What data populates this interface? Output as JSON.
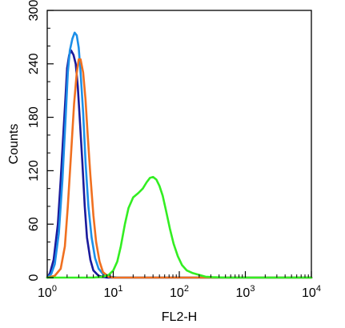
{
  "chart_data": {
    "type": "line",
    "xlabel": "FL2-H",
    "ylabel": "Counts",
    "x_scale": "log",
    "xlim": [
      1,
      10000
    ],
    "ylim": [
      0,
      300
    ],
    "x_ticks": [
      {
        "value": 1,
        "base": "10",
        "exp": "0"
      },
      {
        "value": 10,
        "base": "10",
        "exp": "1"
      },
      {
        "value": 100,
        "base": "10",
        "exp": "2"
      },
      {
        "value": 1000,
        "base": "10",
        "exp": "3"
      },
      {
        "value": 10000,
        "base": "10",
        "exp": "4"
      }
    ],
    "y_ticks": [
      "0",
      "60",
      "120",
      "180",
      "240",
      "300"
    ],
    "grid": false,
    "legend": "none",
    "series": [
      {
        "color": "#1a1a9c",
        "points": [
          [
            1.0,
            0
          ],
          [
            1.1,
            5
          ],
          [
            1.25,
            20
          ],
          [
            1.45,
            60
          ],
          [
            1.6,
            110
          ],
          [
            1.75,
            160
          ],
          [
            1.9,
            205
          ],
          [
            2.0,
            235
          ],
          [
            2.15,
            250
          ],
          [
            2.3,
            255
          ],
          [
            2.5,
            250
          ],
          [
            2.7,
            240
          ],
          [
            2.9,
            215
          ],
          [
            3.1,
            180
          ],
          [
            3.4,
            130
          ],
          [
            3.7,
            80
          ],
          [
            4.0,
            45
          ],
          [
            4.5,
            20
          ],
          [
            5.0,
            8
          ],
          [
            6.0,
            2
          ],
          [
            8.0,
            0
          ],
          [
            10000,
            0
          ]
        ]
      },
      {
        "color": "#1c8fe8",
        "points": [
          [
            1.0,
            0
          ],
          [
            1.15,
            4
          ],
          [
            1.3,
            15
          ],
          [
            1.5,
            50
          ],
          [
            1.7,
            110
          ],
          [
            1.9,
            180
          ],
          [
            2.05,
            230
          ],
          [
            2.2,
            255
          ],
          [
            2.4,
            268
          ],
          [
            2.6,
            275
          ],
          [
            2.8,
            272
          ],
          [
            3.0,
            258
          ],
          [
            3.2,
            230
          ],
          [
            3.5,
            185
          ],
          [
            3.8,
            130
          ],
          [
            4.2,
            80
          ],
          [
            4.7,
            45
          ],
          [
            5.3,
            22
          ],
          [
            6.0,
            10
          ],
          [
            7.0,
            4
          ],
          [
            9.0,
            1
          ],
          [
            12.0,
            0
          ],
          [
            10000,
            0
          ]
        ]
      },
      {
        "color": "#f07020",
        "points": [
          [
            1.0,
            0
          ],
          [
            1.3,
            2
          ],
          [
            1.6,
            10
          ],
          [
            1.85,
            35
          ],
          [
            2.05,
            80
          ],
          [
            2.3,
            140
          ],
          [
            2.55,
            195
          ],
          [
            2.8,
            230
          ],
          [
            3.0,
            245
          ],
          [
            3.2,
            245
          ],
          [
            3.5,
            230
          ],
          [
            3.8,
            200
          ],
          [
            4.1,
            160
          ],
          [
            4.5,
            115
          ],
          [
            5.0,
            70
          ],
          [
            5.5,
            40
          ],
          [
            6.2,
            18
          ],
          [
            7.0,
            6
          ],
          [
            8.5,
            1
          ],
          [
            10.0,
            0
          ],
          [
            10000,
            0
          ]
        ]
      },
      {
        "color": "#33ee22",
        "points": [
          [
            1.0,
            0
          ],
          [
            5.0,
            0
          ],
          [
            7.0,
            1
          ],
          [
            8.5,
            3
          ],
          [
            10.0,
            8
          ],
          [
            11.5,
            18
          ],
          [
            13.0,
            35
          ],
          [
            15.0,
            60
          ],
          [
            17.0,
            78
          ],
          [
            20.0,
            90
          ],
          [
            24.0,
            95
          ],
          [
            28.0,
            100
          ],
          [
            32.0,
            107
          ],
          [
            36.0,
            112
          ],
          [
            40.0,
            113
          ],
          [
            45.0,
            110
          ],
          [
            50.0,
            103
          ],
          [
            56.0,
            92
          ],
          [
            63.0,
            75
          ],
          [
            72.0,
            55
          ],
          [
            82.0,
            38
          ],
          [
            95.0,
            24
          ],
          [
            110.0,
            14
          ],
          [
            130.0,
            8
          ],
          [
            160.0,
            5
          ],
          [
            200.0,
            3
          ],
          [
            250.0,
            1
          ],
          [
            320.0,
            0.5
          ],
          [
            500.0,
            0
          ],
          [
            10000,
            0
          ]
        ]
      }
    ]
  }
}
